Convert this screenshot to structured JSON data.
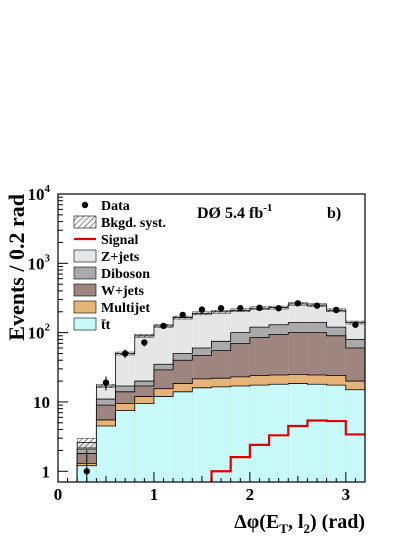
{
  "chart_data": {
    "type": "bar",
    "experiment": "DØ",
    "luminosity": "5.4 fb",
    "luminosity_exp": "-1",
    "panel": "b)",
    "xlabel_pre": "Δφ(",
    "xlabel_met": "E",
    "xlabel_sub": "T",
    "xlabel_mid": ", l",
    "xlabel_sub2": "2",
    "xlabel_post": ") (rad)",
    "ylabel": "Events / 0.2 rad",
    "xlim": [
      0,
      3.2
    ],
    "ylim": [
      0.7,
      10000
    ],
    "yscale": "log",
    "x_ticks": [
      {
        "v": 0,
        "label": "0"
      },
      {
        "v": 1,
        "label": "1"
      },
      {
        "v": 2,
        "label": "2"
      },
      {
        "v": 3,
        "label": "3"
      }
    ],
    "y_ticks": [
      {
        "v": 1,
        "label": "1",
        "base": "1",
        "exp": ""
      },
      {
        "v": 10,
        "label": "10",
        "base": "10",
        "exp": ""
      },
      {
        "v": 100,
        "label": "10^2",
        "base": "10",
        "exp": "2"
      },
      {
        "v": 1000,
        "label": "10^3",
        "base": "10",
        "exp": "3"
      },
      {
        "v": 10000,
        "label": "10^4",
        "base": "10",
        "exp": "4"
      }
    ],
    "bin_edges": [
      0.2,
      0.4,
      0.6,
      0.8,
      1.0,
      1.2,
      1.4,
      1.6,
      1.8,
      2.0,
      2.2,
      2.4,
      2.6,
      2.8,
      3.0,
      3.2
    ],
    "stack": [
      {
        "name": "t̄t",
        "color": "#c8fafa",
        "values": [
          1.2,
          4.5,
          7.5,
          9.5,
          12,
          14,
          16,
          16.5,
          17,
          17.5,
          18,
          18.5,
          18,
          17.5,
          15
        ]
      },
      {
        "name": "Multijet",
        "color": "#e6b478",
        "values": [
          0.1,
          1.0,
          2.0,
          2.5,
          3.5,
          4.5,
          5.5,
          5.5,
          6.0,
          6.5,
          6.5,
          6.5,
          6.5,
          6.5,
          5.0
        ]
      },
      {
        "name": "W+jets",
        "color": "#9e8580",
        "values": [
          0.5,
          3.5,
          4.5,
          5.0,
          13.5,
          21.5,
          25.5,
          33,
          47,
          61,
          69.5,
          75,
          75.5,
          66,
          40
        ]
      },
      {
        "name": "Diboson",
        "color": "#aaaaaa",
        "values": [
          0.3,
          2.0,
          3.0,
          3.0,
          6.0,
          10,
          13,
          20,
          30,
          35,
          36,
          40,
          40,
          30,
          20
        ]
      },
      {
        "name": "Z+jets",
        "color": "#e6e6e6",
        "values": [
          0.5,
          6.0,
          33,
          70,
          90,
          115,
          130,
          125,
          110,
          105,
          100,
          120,
          110,
          90,
          60
        ]
      }
    ],
    "syst_band": [
      {
        "lo": 2.2,
        "hi": 3.0
      },
      {
        "lo": 16,
        "hi": 18
      },
      {
        "lo": 48,
        "hi": 52
      },
      {
        "lo": 86,
        "hi": 94
      },
      {
        "lo": 120,
        "hi": 130
      },
      {
        "lo": 158,
        "hi": 172
      },
      {
        "lo": 182,
        "hi": 198
      },
      {
        "lo": 192,
        "hi": 208
      },
      {
        "lo": 202,
        "hi": 218
      },
      {
        "lo": 216,
        "hi": 234
      },
      {
        "lo": 221,
        "hi": 239
      },
      {
        "lo": 250,
        "hi": 270
      },
      {
        "lo": 240,
        "hi": 260
      },
      {
        "lo": 202,
        "hi": 218
      },
      {
        "lo": 134,
        "hi": 146
      }
    ],
    "signal": {
      "name": "Signal",
      "color": "#e00000",
      "values": [
        0,
        0,
        0,
        0,
        0,
        0,
        0,
        1.0,
        1.6,
        2.4,
        3.3,
        4.5,
        5.4,
        5.3,
        3.4
      ]
    },
    "data": {
      "name": "Data",
      "x": [
        0.3,
        0.5,
        0.7,
        0.9,
        1.1,
        1.3,
        1.5,
        1.7,
        1.9,
        2.1,
        2.3,
        2.5,
        2.7,
        2.9,
        3.1
      ],
      "y": [
        1.0,
        19,
        50,
        72,
        125,
        180,
        215,
        225,
        225,
        228,
        225,
        265,
        245,
        212,
        130
      ],
      "err": [
        1.0,
        4.4,
        7.1,
        8.5,
        11,
        13.4,
        14.7,
        15,
        15,
        15.1,
        15,
        16.3,
        15.7,
        14.6,
        11.4
      ]
    },
    "legend": [
      {
        "label": "Data",
        "kind": "marker"
      },
      {
        "label": "Bkgd. syst.",
        "kind": "hatch"
      },
      {
        "label": "Signal",
        "kind": "line",
        "color": "#e00000"
      },
      {
        "label": "Z+jets",
        "kind": "fill",
        "color": "#e6e6e6"
      },
      {
        "label": "Diboson",
        "kind": "fill",
        "color": "#aaaaaa"
      },
      {
        "label": "W+jets",
        "kind": "fill",
        "color": "#9e8580"
      },
      {
        "label": "Multijet",
        "kind": "fill",
        "color": "#e6b478"
      },
      {
        "label": "t̄t",
        "kind": "fill",
        "color": "#c8fafa"
      }
    ]
  }
}
